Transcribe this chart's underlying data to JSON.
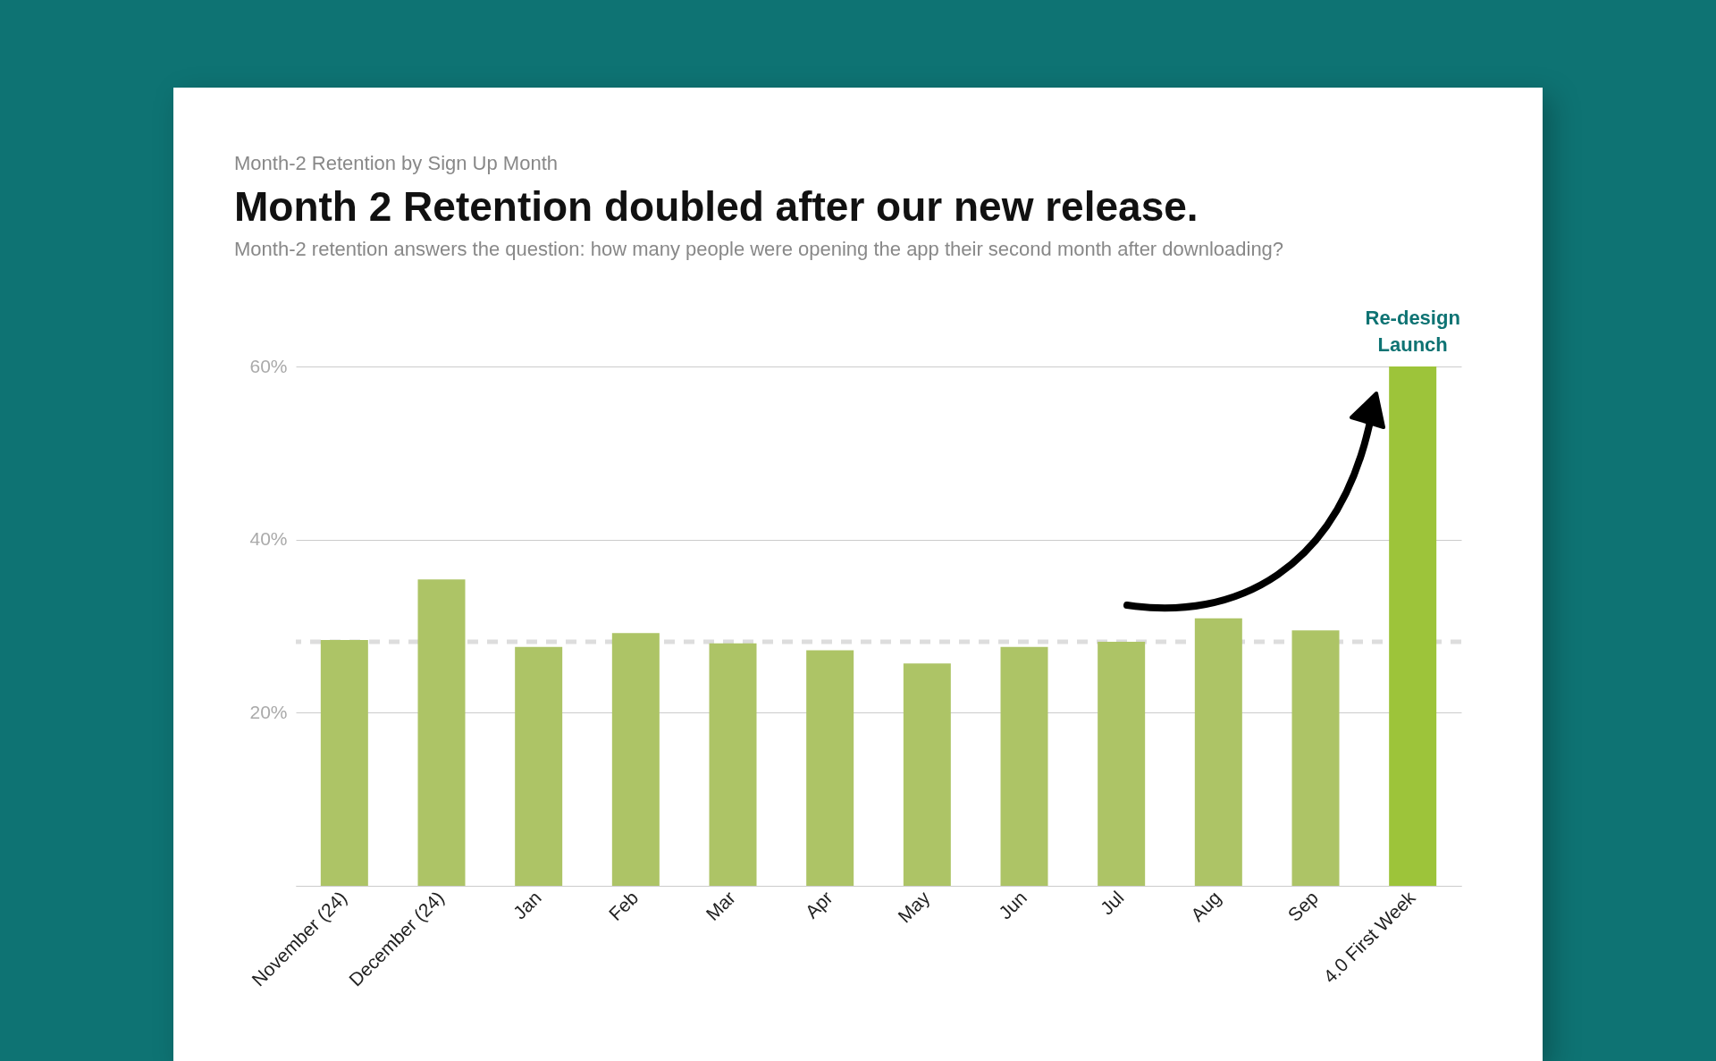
{
  "chart_data": {
    "type": "bar",
    "title": "Month 2 Retention doubled after our new release.",
    "subtitle": "Month-2 retention answers the question: how many people were opening the app their second month  after downloading?",
    "categories": [
      "November (24)",
      "December (24)",
      "Jan",
      "Feb",
      "Mar",
      "Apr",
      "May",
      "Jun",
      "Jul",
      "Aug",
      "Sep",
      "4.0 First Week"
    ],
    "values": [
      28.4,
      35.4,
      27.6,
      29.2,
      28.0,
      27.2,
      25.7,
      27.6,
      28.2,
      30.9,
      29.5,
      60.0
    ],
    "colors": [
      "#adc466",
      "#adc466",
      "#adc466",
      "#adc466",
      "#adc466",
      "#adc466",
      "#adc466",
      "#adc466",
      "#adc466",
      "#adc466",
      "#adc466",
      "#9dc43a"
    ],
    "ylim": [
      0,
      60
    ],
    "yticks": [
      {
        "value": 0,
        "label": null
      },
      {
        "value": 20,
        "label": "20%"
      },
      {
        "value": 40,
        "label": "40%"
      },
      {
        "value": 60,
        "label": "60%"
      }
    ],
    "grid": "y",
    "ref_lines": [
      {
        "axis": "y",
        "value": 28.2,
        "color": "#dddddd",
        "line_style": "dashed"
      }
    ],
    "annotations": [
      "Month-2 Retention by Sign Up Month",
      {
        "text": "Re-design Launch",
        "x": "4.0 First Week",
        "y": 60
      }
    ]
  }
}
